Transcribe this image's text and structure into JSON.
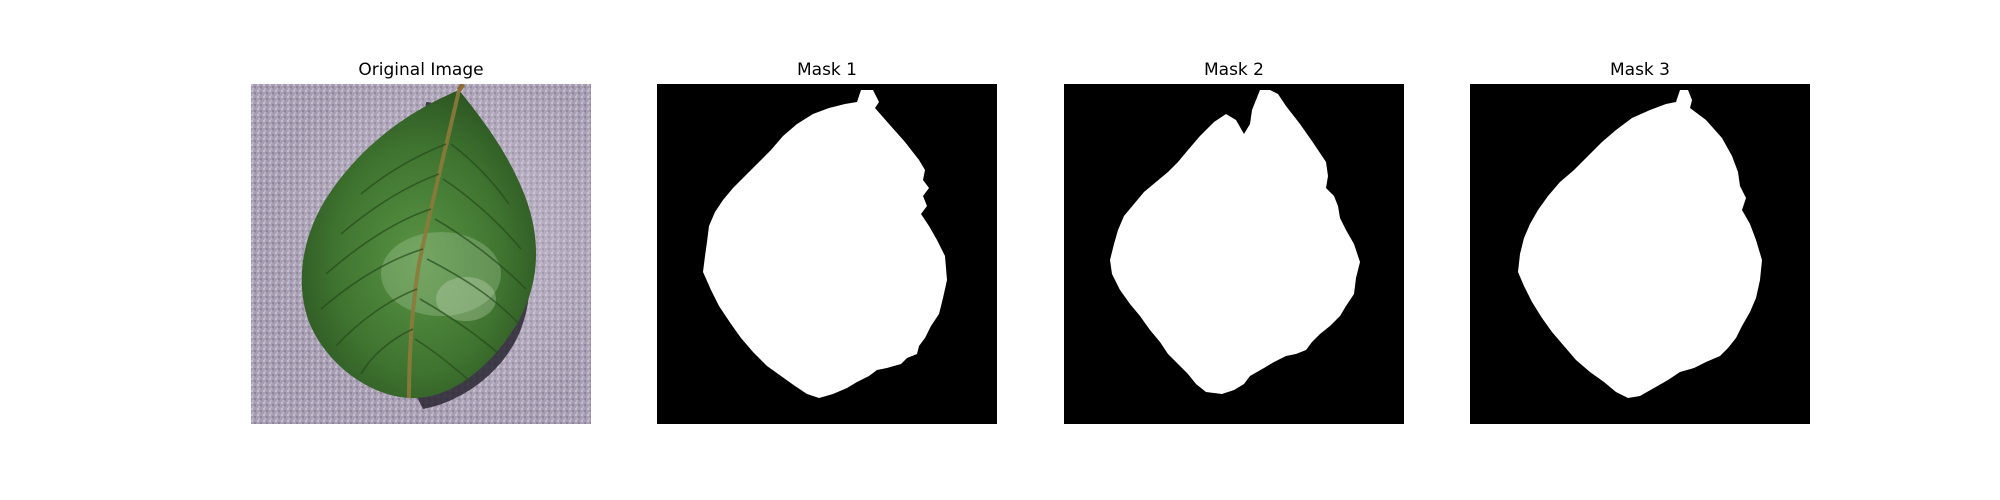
{
  "panels": [
    {
      "title": "Original Image",
      "content": "photo of a green leaf on a grey textured surface"
    },
    {
      "title": "Mask 1",
      "content": "binary segmentation mask"
    },
    {
      "title": "Mask 2",
      "content": "binary segmentation mask"
    },
    {
      "title": "Mask 3",
      "content": "binary segmentation mask"
    }
  ],
  "colors": {
    "background": "#ffffff",
    "mask_background": "#000000",
    "mask_foreground": "#ffffff",
    "leaf_dark": "#2f5a22",
    "leaf_light": "#4e8a3a",
    "surface": "#a59bb0"
  }
}
